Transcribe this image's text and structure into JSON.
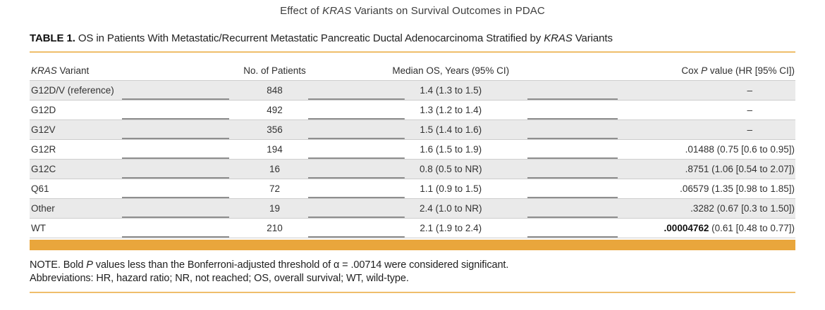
{
  "accent": {
    "amber_bar": "#E9A63C",
    "amber_rule": "#EFBE6B",
    "row_shade": "#EAEAEA"
  },
  "page_title": {
    "prefix": "Effect of ",
    "italic": "KRAS",
    "suffix": " Variants on Survival Outcomes in PDAC"
  },
  "table_caption": {
    "label": "TABLE 1.",
    "before_italic": " OS in Patients With Metastatic/Recurrent Metastatic Pancreatic Ductal Adenocarcinoma Stratified by ",
    "italic": "KRAS",
    "suffix": " Variants"
  },
  "table": {
    "columns": {
      "variant": {
        "italic": "KRAS",
        "suffix": " Variant"
      },
      "patients": {
        "label": "No. of Patients"
      },
      "median_os": {
        "label": "Median OS, Years (95% CI)"
      },
      "cox": {
        "prefix": "Cox ",
        "italic": "P",
        "suffix": " value (HR [95% CI])"
      }
    },
    "rows": [
      {
        "variant": "G12D/V (reference)",
        "patients": "848",
        "median_os": "1.4 (1.3 to 1.5)",
        "cox_p": "–"
      },
      {
        "variant": "G12D",
        "patients": "492",
        "median_os": "1.3 (1.2 to 1.4)",
        "cox_p": "–"
      },
      {
        "variant": "G12V",
        "patients": "356",
        "median_os": "1.5 (1.4 to 1.6)",
        "cox_p": "–"
      },
      {
        "variant": "G12R",
        "patients": "194",
        "median_os": "1.6 (1.5 to 1.9)",
        "cox_p": ".01488 (0.75 [0.6 to 0.95])"
      },
      {
        "variant": "G12C",
        "patients": "16",
        "median_os": "0.8 (0.5 to NR)",
        "cox_p": ".8751 (1.06 [0.54 to 2.07])"
      },
      {
        "variant": "Q61",
        "patients": "72",
        "median_os": "1.1 (0.9 to 1.5)",
        "cox_p": ".06579 (1.35 [0.98 to 1.85])"
      },
      {
        "variant": "Other",
        "patients": "19",
        "median_os": "2.4 (1.0 to NR)",
        "cox_p": ".3282 (0.67 [0.3 to 1.50])"
      },
      {
        "variant": "WT",
        "patients": "210",
        "median_os": "2.1 (1.9 to 2.4)",
        "cox_p_bold": ".00004762",
        "cox_p_rest": " (0.61 [0.48 to 0.77])"
      }
    ]
  },
  "notes": {
    "note_prefix": "NOTE. Bold ",
    "note_italic": "P",
    "note_suffix": " values less than the Bonferroni-adjusted threshold of α = .00714 were considered significant.",
    "abbreviations": "Abbreviations: HR, hazard ratio; NR, not reached; OS, overall survival; WT, wild-type."
  }
}
